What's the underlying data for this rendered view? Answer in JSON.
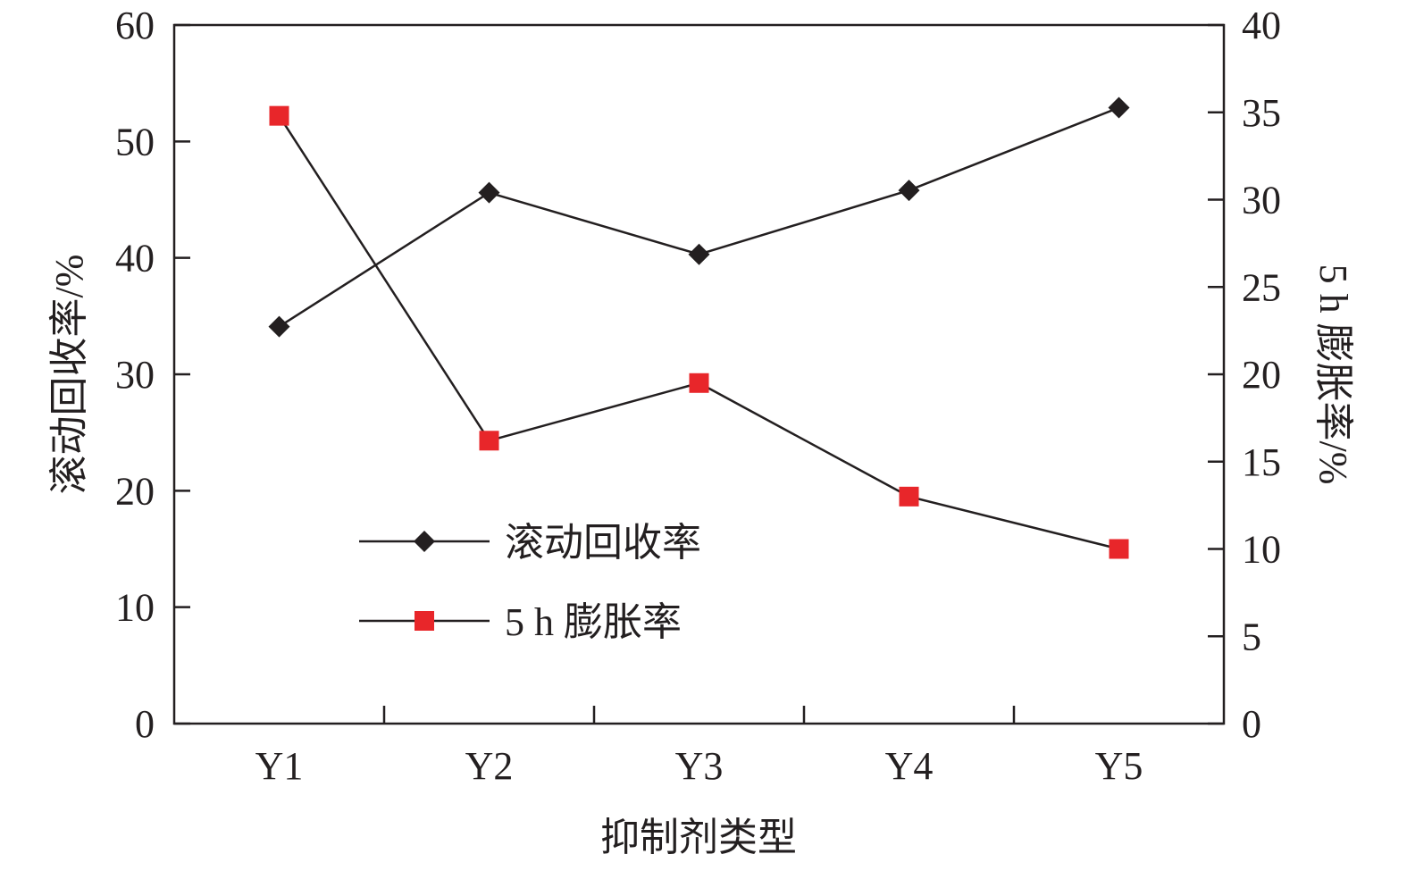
{
  "chart_data": {
    "type": "line",
    "xlabel": "抑制剂类型",
    "ylabel": "滚动回收率/%",
    "y2label": "5 h 膨胀率/%",
    "categories": [
      "Y1",
      "Y2",
      "Y3",
      "Y4",
      "Y5"
    ],
    "ylim": [
      0,
      60
    ],
    "y2lim": [
      0,
      40
    ],
    "yticks": [
      "0",
      "10",
      "20",
      "30",
      "40",
      "50",
      "60"
    ],
    "y2ticks": [
      "0",
      "5",
      "10",
      "15",
      "20",
      "25",
      "30",
      "35",
      "40"
    ],
    "grid": false,
    "legend_position": "center-left",
    "series": [
      {
        "name": "滚动回收率",
        "axis": "left",
        "marker": "diamond",
        "color": "#231f20",
        "values": [
          34.1,
          45.6,
          40.3,
          45.8,
          52.9
        ]
      },
      {
        "name": "5 h 膨胀率",
        "axis": "right",
        "marker": "square",
        "color": "#e8262a",
        "values": [
          34.8,
          16.2,
          19.5,
          13.0,
          10.0
        ]
      }
    ]
  }
}
